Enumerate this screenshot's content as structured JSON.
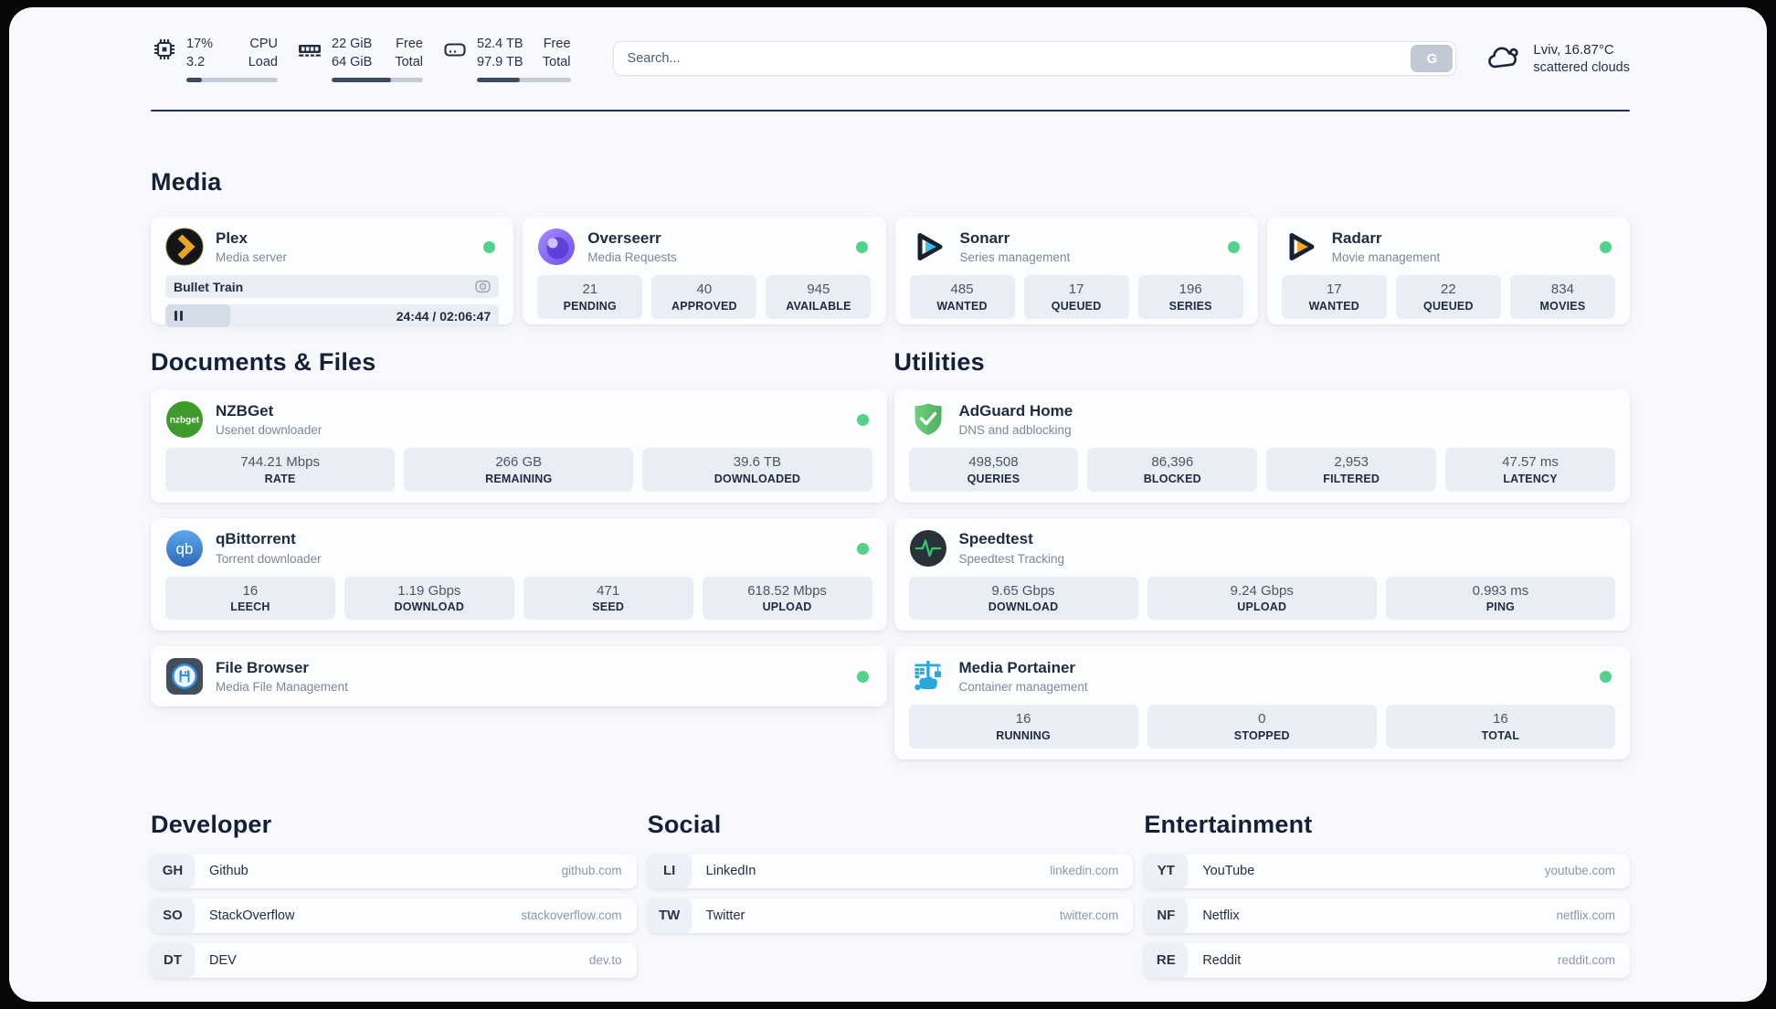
{
  "colors": {
    "status_online": "#53d28c",
    "accent_dark": "#232f44",
    "stat_box_bg": "#e9edf4"
  },
  "header": {
    "monitors": [
      {
        "icon": "cpu-icon",
        "line1": "17%",
        "line2": "3.2",
        "label1": "CPU",
        "label2": "Load",
        "progress": 17
      },
      {
        "icon": "ram-icon",
        "line1": "22 GiB",
        "line2": "64 GiB",
        "label1": "Free",
        "label2": "Total",
        "progress": 65
      },
      {
        "icon": "disk-icon",
        "line1": "52.4 TB",
        "line2": "97.9 TB",
        "label1": "Free",
        "label2": "Total",
        "progress": 46
      }
    ],
    "search": {
      "placeholder": "Search...",
      "button_label": "G"
    },
    "weather": {
      "location_temp": "Lviv, 16.87°C",
      "condition": "scattered clouds"
    }
  },
  "app_sections": [
    {
      "id": "media",
      "title": "Media",
      "cards": [
        {
          "id": "plex",
          "icon": "plex-icon",
          "title": "Plex",
          "subtitle": "Media server",
          "online": true,
          "media": {
            "now_playing": "Bullet Train",
            "time_display": "24:44 / 02:06:47",
            "progress_pct": 19.5
          },
          "stats": []
        },
        {
          "id": "overseerr",
          "icon": "overseerr-icon",
          "title": "Overseerr",
          "subtitle": "Media Requests",
          "online": true,
          "stats": [
            {
              "value": "21",
              "label": "PENDING"
            },
            {
              "value": "40",
              "label": "APPROVED"
            },
            {
              "value": "945",
              "label": "AVAILABLE"
            }
          ]
        },
        {
          "id": "sonarr",
          "icon": "sonarr-icon",
          "title": "Sonarr",
          "subtitle": "Series management",
          "online": true,
          "stats": [
            {
              "value": "485",
              "label": "WANTED"
            },
            {
              "value": "17",
              "label": "QUEUED"
            },
            {
              "value": "196",
              "label": "SERIES"
            }
          ]
        },
        {
          "id": "radarr",
          "icon": "radarr-icon",
          "title": "Radarr",
          "subtitle": "Movie management",
          "online": true,
          "stats": [
            {
              "value": "17",
              "label": "WANTED"
            },
            {
              "value": "22",
              "label": "QUEUED"
            },
            {
              "value": "834",
              "label": "MOVIES"
            }
          ]
        }
      ]
    },
    {
      "id": "documents",
      "title": "Documents & Files",
      "cards": [
        {
          "id": "nzbget",
          "icon": "nzbget-icon",
          "title": "NZBGet",
          "subtitle": "Usenet downloader",
          "online": true,
          "stats": [
            {
              "value": "744.21 Mbps",
              "label": "RATE"
            },
            {
              "value": "266 GB",
              "label": "REMAINING"
            },
            {
              "value": "39.6 TB",
              "label": "DOWNLOADED"
            }
          ]
        },
        {
          "id": "qbittorrent",
          "icon": "qbittorrent-icon",
          "title": "qBittorrent",
          "subtitle": "Torrent downloader",
          "online": true,
          "stats": [
            {
              "value": "16",
              "label": "LEECH"
            },
            {
              "value": "1.19 Gbps",
              "label": "DOWNLOAD"
            },
            {
              "value": "471",
              "label": "SEED"
            },
            {
              "value": "618.52 Mbps",
              "label": "UPLOAD"
            }
          ]
        },
        {
          "id": "filebrowser",
          "icon": "filebrowser-icon",
          "title": "File Browser",
          "subtitle": "Media File Management",
          "online": true,
          "stats": []
        }
      ]
    },
    {
      "id": "utilities",
      "title": "Utilities",
      "cards": [
        {
          "id": "adguard",
          "icon": "adguard-icon",
          "title": "AdGuard Home",
          "subtitle": "DNS and adblocking",
          "online": false,
          "stats": [
            {
              "value": "498,508",
              "label": "QUERIES"
            },
            {
              "value": "86,396",
              "label": "BLOCKED"
            },
            {
              "value": "2,953",
              "label": "FILTERED"
            },
            {
              "value": "47.57 ms",
              "label": "LATENCY"
            }
          ]
        },
        {
          "id": "speedtest",
          "icon": "speedtest-icon",
          "title": "Speedtest",
          "subtitle": "Speedtest Tracking",
          "online": false,
          "stats": [
            {
              "value": "9.65 Gbps",
              "label": "DOWNLOAD"
            },
            {
              "value": "9.24 Gbps",
              "label": "UPLOAD"
            },
            {
              "value": "0.993 ms",
              "label": "PING"
            }
          ]
        },
        {
          "id": "portainer",
          "icon": "portainer-icon",
          "title": "Media Portainer",
          "subtitle": "Container management",
          "online": true,
          "stats": [
            {
              "value": "16",
              "label": "RUNNING"
            },
            {
              "value": "0",
              "label": "STOPPED"
            },
            {
              "value": "16",
              "label": "TOTAL"
            }
          ]
        }
      ]
    }
  ],
  "link_sections": [
    {
      "title": "Developer",
      "links": [
        {
          "abbr": "GH",
          "name": "Github",
          "url": "github.com"
        },
        {
          "abbr": "SO",
          "name": "StackOverflow",
          "url": "stackoverflow.com"
        },
        {
          "abbr": "DT",
          "name": "DEV",
          "url": "dev.to"
        }
      ]
    },
    {
      "title": "Social",
      "links": [
        {
          "abbr": "LI",
          "name": "LinkedIn",
          "url": "linkedin.com"
        },
        {
          "abbr": "TW",
          "name": "Twitter",
          "url": "twitter.com"
        }
      ]
    },
    {
      "title": "Entertainment",
      "links": [
        {
          "abbr": "YT",
          "name": "YouTube",
          "url": "youtube.com"
        },
        {
          "abbr": "NF",
          "name": "Netflix",
          "url": "netflix.com"
        },
        {
          "abbr": "RE",
          "name": "Reddit",
          "url": "reddit.com"
        }
      ]
    }
  ]
}
